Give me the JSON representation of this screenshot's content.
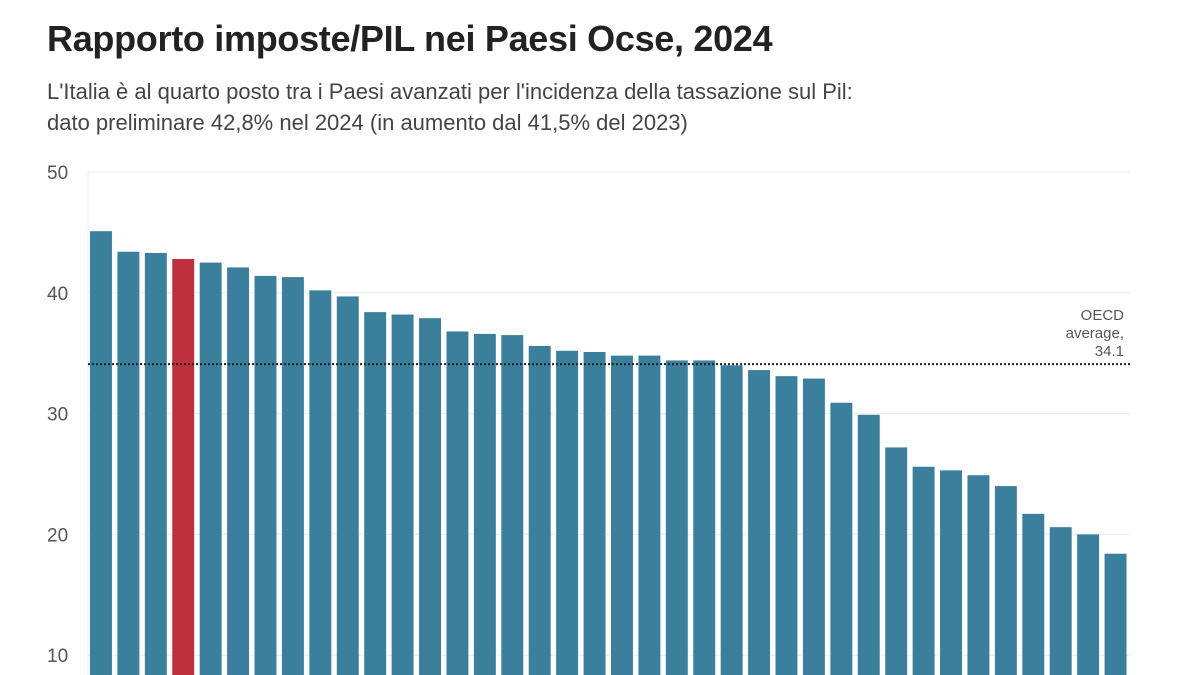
{
  "chart_data": {
    "type": "bar",
    "title": "Rapporto imposte/PIL nei Paesi Ocse, 2024",
    "subtitle_lines": [
      "L'Italia è al quarto posto tra i Paesi avanzati per l'incidenza della tassazione sul Pil:",
      "dato preliminare 42,8% nel 2024 (in aumento dal 41,5% del 2023)"
    ],
    "xlabel": "",
    "ylabel": "",
    "ylim": [
      0,
      50
    ],
    "yticks": [
      "10",
      "20",
      "30",
      "40",
      "50"
    ],
    "grid": true,
    "values": [
      45.1,
      43.4,
      43.3,
      42.8,
      42.5,
      42.1,
      41.4,
      41.3,
      40.2,
      39.7,
      38.4,
      38.2,
      37.9,
      36.8,
      36.6,
      36.5,
      35.6,
      35.2,
      35.1,
      34.8,
      34.8,
      34.4,
      34.4,
      34.0,
      33.6,
      33.1,
      32.9,
      30.9,
      29.9,
      27.2,
      25.6,
      25.3,
      24.9,
      24.0,
      21.7,
      20.6,
      20.0,
      18.4
    ],
    "highlight_index": 3,
    "colors": {
      "bar": "#3a7f9c",
      "highlight": "#c0303c",
      "grid": "#ececec"
    },
    "reference_line": {
      "value": 34.1,
      "label_lines": [
        "OECD",
        "average,",
        "34.1"
      ]
    }
  }
}
